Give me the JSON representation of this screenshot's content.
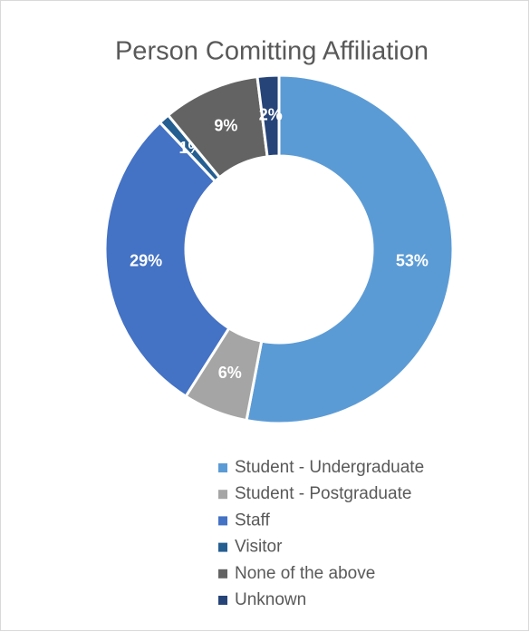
{
  "chart_data": {
    "type": "donut",
    "title": "Person Comitting Affiliation",
    "categories": [
      "Student - Undergraduate",
      "Student - Postgraduate",
      "Staff",
      "Visitor",
      "None of the above",
      "Unknown"
    ],
    "values": [
      53,
      6,
      29,
      1,
      9,
      2
    ],
    "value_labels": [
      "53%",
      "6%",
      "29%",
      "1%",
      "9%",
      "2%"
    ],
    "colors": [
      "#5b9bd5",
      "#a5a5a5",
      "#4472c4",
      "#255e91",
      "#636363",
      "#264478"
    ],
    "legend": "bottom"
  }
}
